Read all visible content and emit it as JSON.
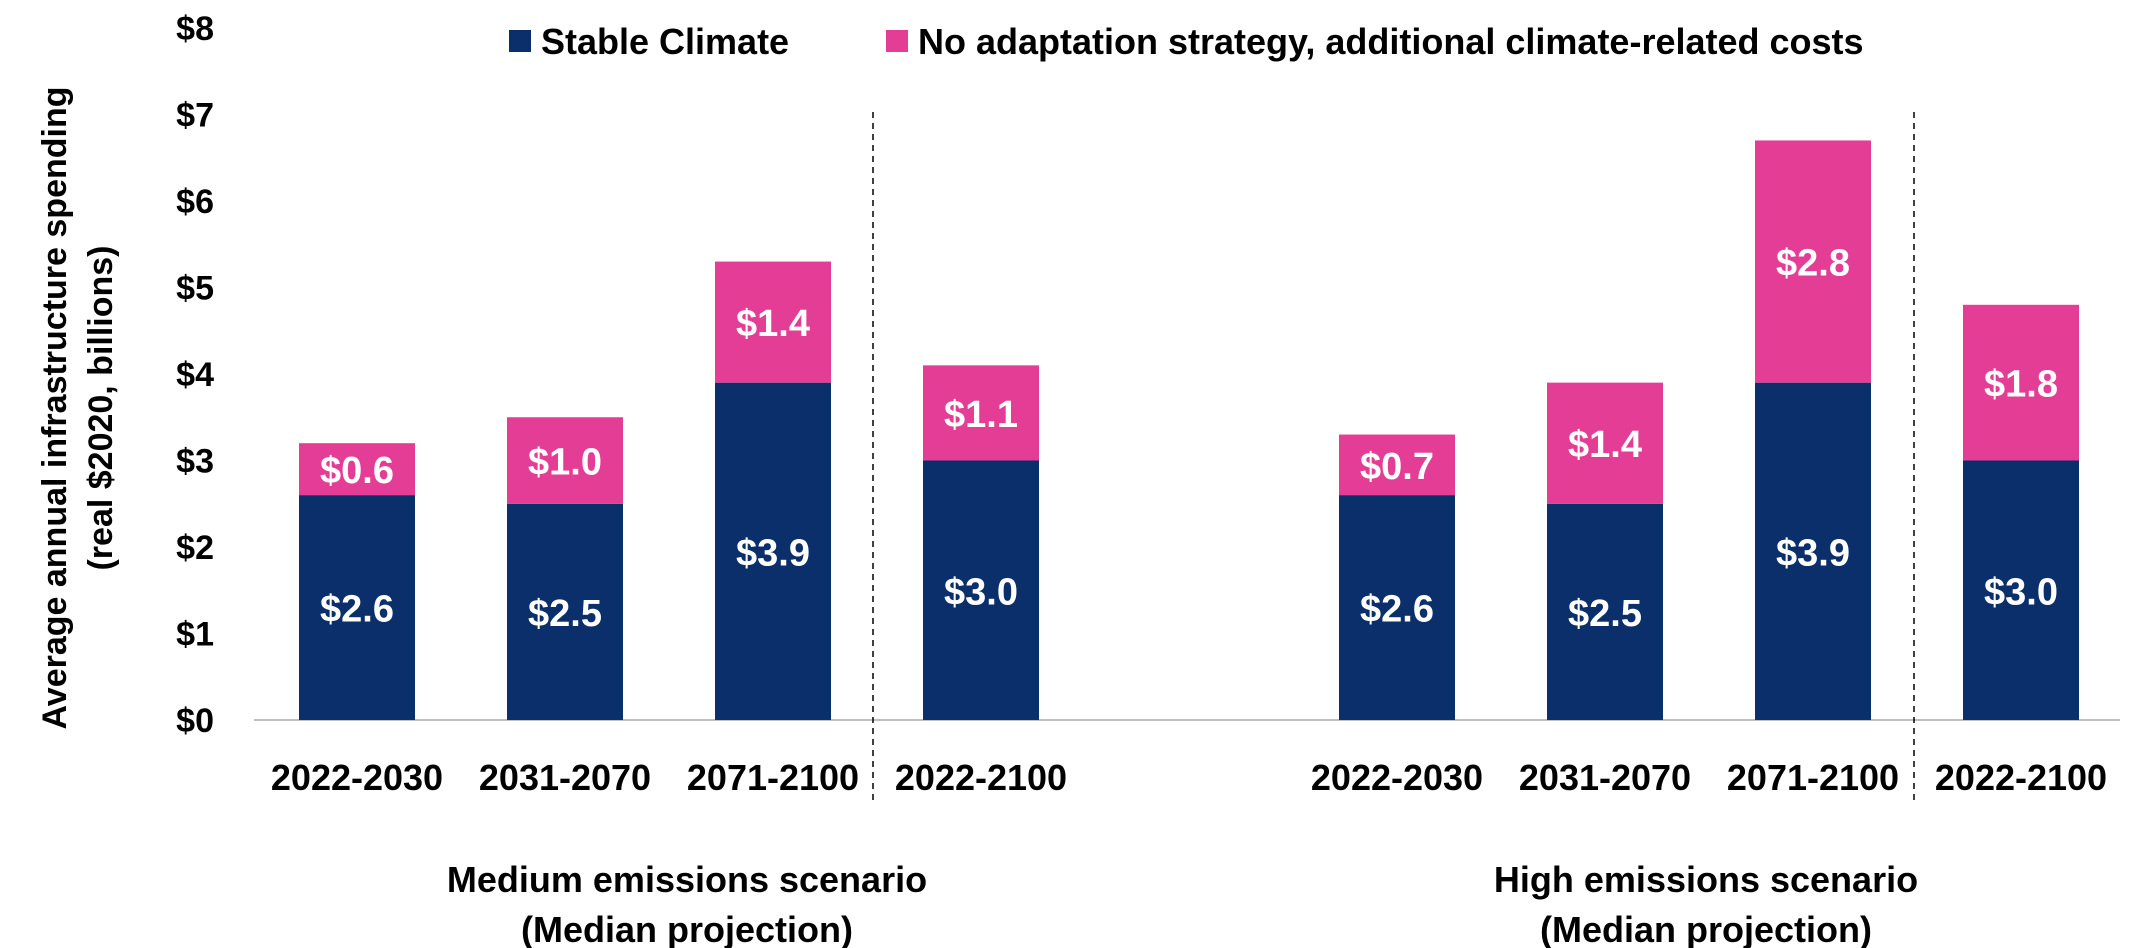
{
  "chart_data": {
    "type": "stacked-bar",
    "ylabel": [
      "Average annual infrastructure spending",
      "(real $2020, billions)"
    ],
    "ylim": [
      0,
      8
    ],
    "yticks": [
      {
        "value": 0,
        "label": "$0"
      },
      {
        "value": 1,
        "label": "$1"
      },
      {
        "value": 2,
        "label": "$2"
      },
      {
        "value": 3,
        "label": "$3"
      },
      {
        "value": 4,
        "label": "$4"
      },
      {
        "value": 5,
        "label": "$5"
      },
      {
        "value": 6,
        "label": "$6"
      },
      {
        "value": 7,
        "label": "$7"
      },
      {
        "value": 8,
        "label": "$8"
      }
    ],
    "legend_position": "top",
    "series": [
      {
        "name": "Stable Climate",
        "color": "#0b2f6a"
      },
      {
        "name": "No adaptation strategy, additional climate-related costs",
        "color": "#e33d95"
      }
    ],
    "groups": [
      {
        "title": [
          "Medium emissions scenario",
          "(Median projection)"
        ],
        "bars": [
          {
            "category": "2022-2030",
            "values": [
              2.6,
              0.6
            ],
            "labels": [
              "$2.6",
              "$0.6"
            ]
          },
          {
            "category": "2031-2070",
            "values": [
              2.5,
              1.0
            ],
            "labels": [
              "$2.5",
              "$1.0"
            ]
          },
          {
            "category": "2071-2100",
            "values": [
              3.9,
              1.4
            ],
            "labels": [
              "$3.9",
              "$1.4"
            ]
          },
          {
            "category": "2022-2100",
            "values": [
              3.0,
              1.1
            ],
            "labels": [
              "$3.0",
              "$1.1"
            ]
          }
        ]
      },
      {
        "title": [
          "High emissions scenario",
          "(Median projection)"
        ],
        "bars": [
          {
            "category": "2022-2030",
            "values": [
              2.6,
              0.7
            ],
            "labels": [
              "$2.6",
              "$0.7"
            ]
          },
          {
            "category": "2031-2070",
            "values": [
              2.5,
              1.4
            ],
            "labels": [
              "$2.5",
              "$1.4"
            ]
          },
          {
            "category": "2071-2100",
            "values": [
              3.9,
              2.8
            ],
            "labels": [
              "$3.9",
              "$2.8"
            ]
          },
          {
            "category": "2022-2100",
            "values": [
              3.0,
              1.8
            ],
            "labels": [
              "$3.0",
              "$1.8"
            ]
          }
        ]
      }
    ]
  }
}
